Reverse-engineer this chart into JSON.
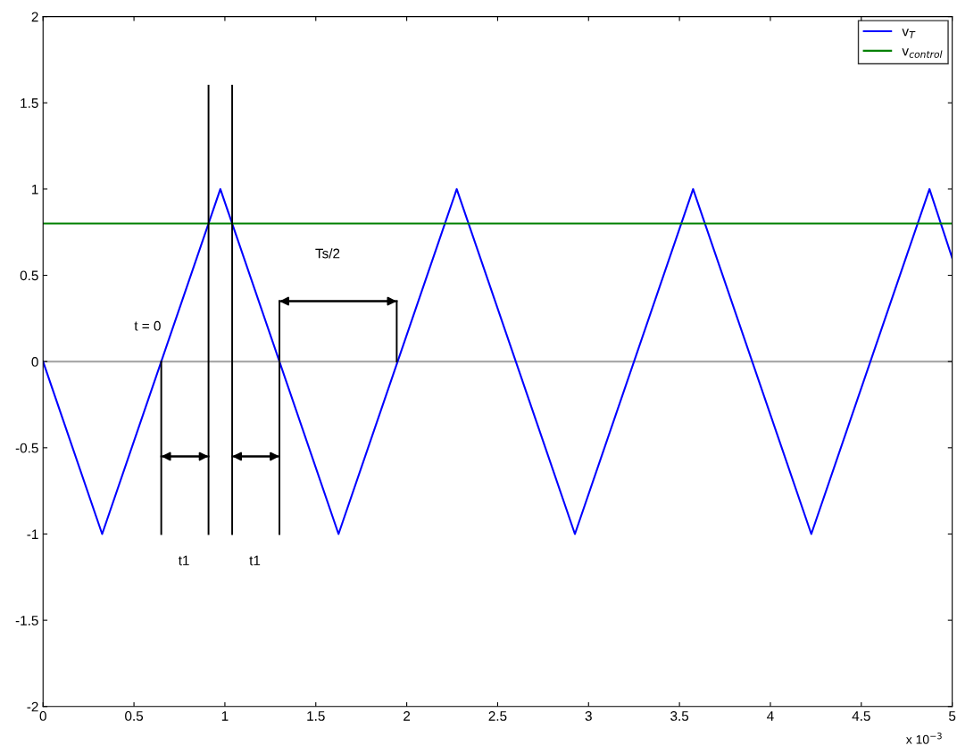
{
  "chart_data": {
    "type": "line",
    "x": [
      0,
      0.325,
      0.975,
      1.625,
      2.275,
      2.925,
      3.575,
      4.225,
      4.875,
      5
    ],
    "series": [
      {
        "name": "v$_{T}$",
        "color": "#0000ff",
        "values": [
          0,
          -1,
          1,
          -1,
          1,
          -1,
          1,
          -1,
          1,
          0.6
        ]
      },
      {
        "name": "v$_{control}$",
        "color": "#008000",
        "x": [
          0,
          5
        ],
        "values": [
          0.8,
          0.8
        ]
      },
      {
        "color": "#000000",
        "x": [
          0.65,
          0.65
        ],
        "values": [
          0,
          -1
        ]
      },
      {
        "color": "#000000",
        "x": [
          0.91,
          0.91
        ],
        "values": [
          1.6,
          -1
        ]
      },
      {
        "color": "#000000",
        "x": [
          1.04,
          1.04
        ],
        "values": [
          1.6,
          -1
        ]
      },
      {
        "color": "#000000",
        "x": [
          1.3,
          1.3
        ],
        "values": [
          0.35,
          -1
        ]
      },
      {
        "color": "#000000",
        "x": [
          1.945,
          1.945
        ],
        "values": [
          0.35,
          0
        ]
      },
      {
        "color": "#000000",
        "x": [
          0.65,
          0.91
        ],
        "values": [
          -0.55,
          -0.55
        ]
      },
      {
        "color": "#000000",
        "x": [
          1.04,
          1.3
        ],
        "values": [
          -0.55,
          -0.55
        ]
      },
      {
        "color": "#000000",
        "x": [
          1.3,
          1.945
        ],
        "values": [
          0.35,
          0.35
        ]
      }
    ],
    "ref_lines": [
      {
        "axis": "y",
        "value": 0,
        "color": "#a0a0a0"
      }
    ],
    "annotations": [
      "t = 0",
      "t1",
      "t1",
      "Ts/2",
      "x 10$^{−3}$"
    ],
    "xlim": [
      0,
      5
    ],
    "xticks": [
      0,
      0.5,
      1,
      1.5,
      2,
      2.5,
      3,
      3.5,
      4,
      4.5,
      5
    ],
    "ylim": [
      -2,
      2
    ],
    "yticks": [
      -2,
      -1.5,
      -1,
      -0.5,
      0,
      0.5,
      1,
      1.5,
      2
    ],
    "grid": false,
    "legend": "top right"
  }
}
